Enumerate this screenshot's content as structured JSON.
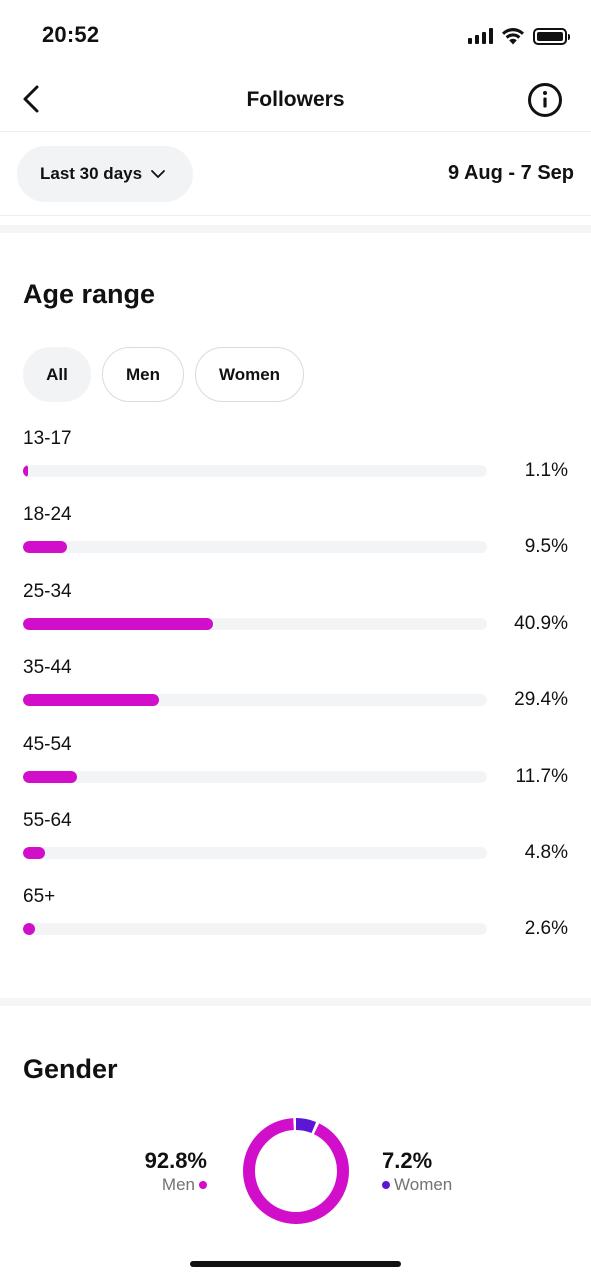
{
  "status_bar": {
    "time": "20:52"
  },
  "header": {
    "title": "Followers"
  },
  "range": {
    "selected": "Last 30 days",
    "dates": "9 Aug - 7 Sep"
  },
  "age_section": {
    "title": "Age range",
    "filters": [
      "All",
      "Men",
      "Women"
    ],
    "active_filter": "All"
  },
  "colors": {
    "accent": "#d10ec9",
    "women": "#5b16d6",
    "track": "#f3f4f6"
  },
  "chart_data": {
    "type": "bar",
    "orientation": "horizontal",
    "categories": [
      "13-17",
      "18-24",
      "25-34",
      "35-44",
      "45-54",
      "55-64",
      "65+"
    ],
    "values": [
      1.1,
      9.5,
      40.9,
      29.4,
      11.7,
      4.8,
      2.6
    ],
    "labels": [
      "1.1%",
      "9.5%",
      "40.9%",
      "29.4%",
      "11.7%",
      "4.8%",
      "2.6%"
    ],
    "xlim": [
      0,
      100
    ]
  },
  "gender_section": {
    "title": "Gender",
    "men": {
      "label": "Men",
      "value": "92.8%",
      "pct": 92.8
    },
    "women": {
      "label": "Women",
      "value": "7.2%",
      "pct": 7.2
    }
  }
}
